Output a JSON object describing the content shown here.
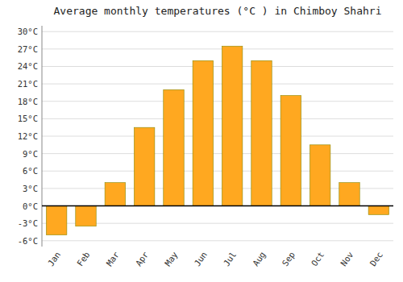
{
  "chart_data": {
    "type": "bar",
    "title": "Average monthly temperatures (°C ) in Chimboy Shahri",
    "categories": [
      "Jan",
      "Feb",
      "Mar",
      "Apr",
      "May",
      "Jun",
      "Jul",
      "Aug",
      "Sep",
      "Oct",
      "Nov",
      "Dec"
    ],
    "values": [
      -5.0,
      -3.5,
      4.0,
      13.5,
      20.0,
      25.0,
      27.5,
      25.0,
      19.0,
      10.5,
      4.0,
      -1.5
    ],
    "color": "#FFA820",
    "ylim": [
      -7,
      31
    ],
    "yticks": [
      {
        "value": -6,
        "label": "-6°C"
      },
      {
        "value": -3,
        "label": "-3°C"
      },
      {
        "value": 0,
        "label": "0°C"
      },
      {
        "value": 3,
        "label": "3°C"
      },
      {
        "value": 6,
        "label": "6°C"
      },
      {
        "value": 9,
        "label": "9°C"
      },
      {
        "value": 12,
        "label": "12°C"
      },
      {
        "value": 15,
        "label": "15°C"
      },
      {
        "value": 18,
        "label": "18°C"
      },
      {
        "value": 21,
        "label": "21°C"
      },
      {
        "value": 24,
        "label": "24°C"
      },
      {
        "value": 27,
        "label": "27°C"
      },
      {
        "value": 30,
        "label": "30°C"
      }
    ],
    "grid": true
  }
}
